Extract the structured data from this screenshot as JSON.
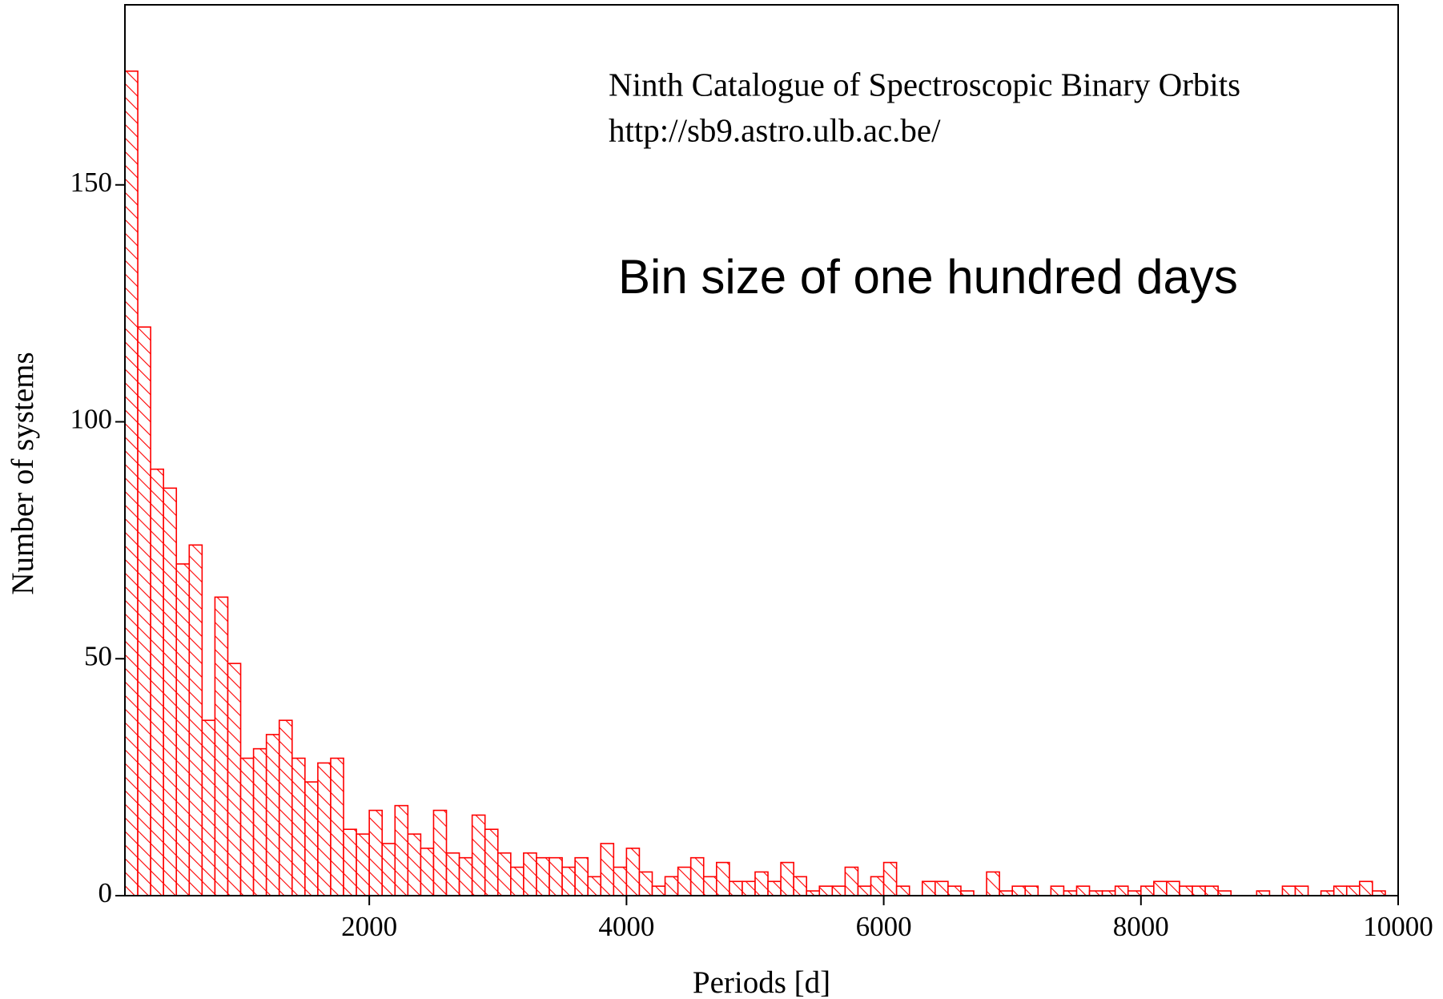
{
  "chart_data": {
    "type": "histogram",
    "annotations": [
      "Ninth Catalogue of Spectroscopic Binary Orbits",
      "http://sb9.astro.ulb.ac.be/",
      "Bin size of one hundred days"
    ],
    "xlabel": "Periods [d]",
    "ylabel": "Number of systems",
    "color": "#ff0000",
    "hatch": true,
    "xlim": [
      100,
      10000
    ],
    "ylim": [
      0,
      188
    ],
    "xticks": [
      2000,
      4000,
      6000,
      8000,
      10000
    ],
    "yticks": [
      0,
      50,
      100,
      150
    ],
    "bins": [
      100,
      200,
      300,
      400,
      500,
      600,
      700,
      800,
      900,
      1000,
      1100,
      1200,
      1300,
      1400,
      1500,
      1600,
      1700,
      1800,
      1900,
      2000,
      2100,
      2200,
      2300,
      2400,
      2500,
      2600,
      2700,
      2800,
      2900,
      3000,
      3100,
      3200,
      3300,
      3400,
      3500,
      3600,
      3700,
      3800,
      3900,
      4000,
      4100,
      4200,
      4300,
      4400,
      4500,
      4600,
      4700,
      4800,
      4900,
      5000,
      5100,
      5200,
      5300,
      5400,
      5500,
      5600,
      5700,
      5800,
      5900,
      6000,
      6100,
      6200,
      6300,
      6400,
      6500,
      6600,
      6700,
      6800,
      6900,
      7000,
      7100,
      7200,
      7300,
      7400,
      7500,
      7600,
      7700,
      7800,
      7900,
      8000,
      8100,
      8200,
      8300,
      8400,
      8500,
      8600,
      8700,
      8800,
      8900,
      9000,
      9100,
      9200,
      9300,
      9400,
      9500,
      9600,
      9700,
      9800,
      9900
    ],
    "counts": [
      174,
      120,
      90,
      86,
      70,
      74,
      37,
      63,
      49,
      29,
      31,
      34,
      37,
      29,
      24,
      28,
      29,
      14,
      13,
      18,
      11,
      19,
      13,
      10,
      18,
      9,
      8,
      17,
      14,
      9,
      6,
      9,
      8,
      8,
      6,
      8,
      4,
      11,
      6,
      10,
      5,
      2,
      4,
      6,
      8,
      4,
      7,
      3,
      3,
      5,
      3,
      7,
      4,
      1,
      2,
      2,
      6,
      2,
      4,
      7,
      2,
      0,
      3,
      3,
      2,
      1,
      0,
      5,
      1,
      2,
      2,
      0,
      2,
      1,
      2,
      1,
      1,
      2,
      1,
      2,
      3,
      3,
      2,
      2,
      2,
      1,
      0,
      0,
      1,
      0,
      2,
      2,
      0,
      1,
      2,
      2,
      3,
      1
    ]
  }
}
